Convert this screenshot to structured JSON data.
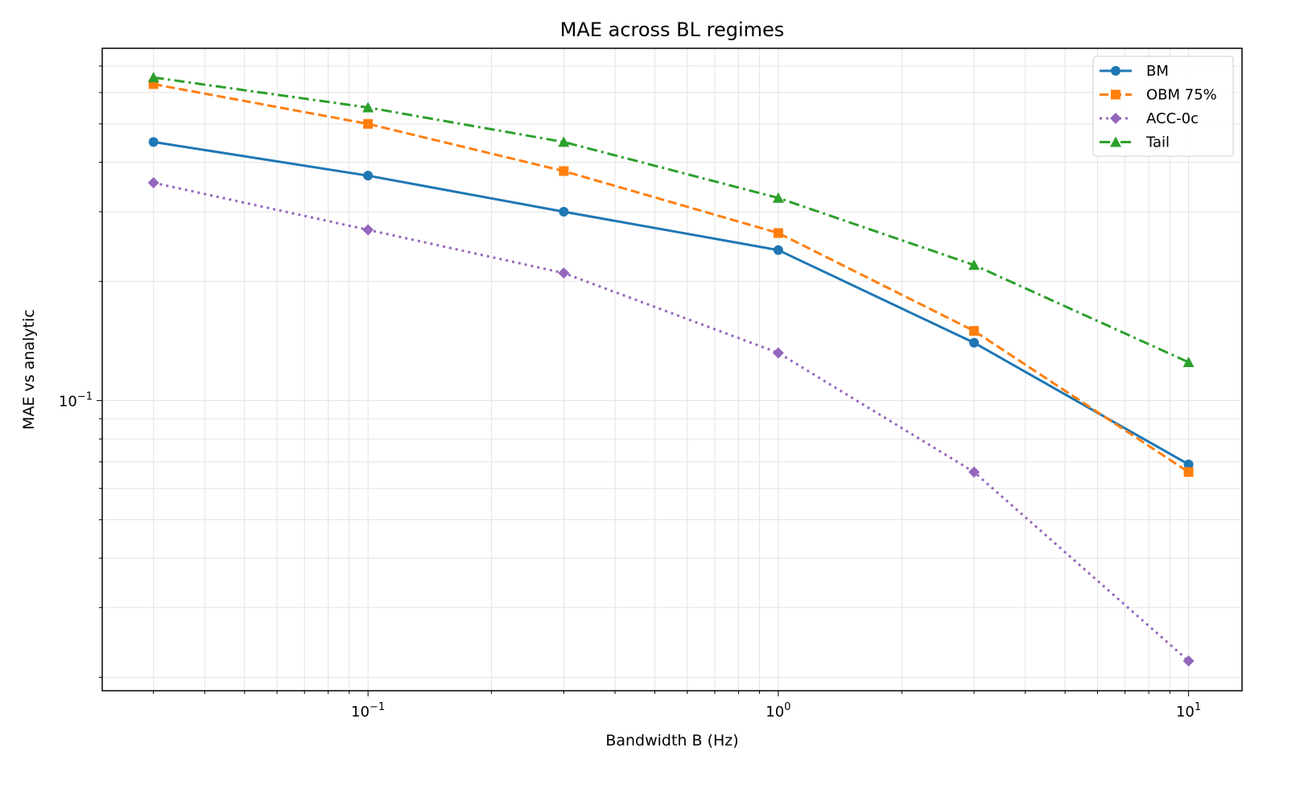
{
  "chart_data": {
    "type": "line",
    "title": "MAE across BL regimes",
    "xlabel": "Bandwidth B (Hz)",
    "ylabel": "MAE vs analytic",
    "xscale": "log",
    "yscale": "log",
    "xlim": [
      0.0225,
      13.5
    ],
    "ylim": [
      0.0185,
      0.776
    ],
    "x_ticks": [
      {
        "value": 0.1,
        "base": "10",
        "exp": "−1"
      },
      {
        "value": 1,
        "base": "10",
        "exp": "0"
      },
      {
        "value": 10,
        "base": "10",
        "exp": "1"
      }
    ],
    "y_ticks": [
      {
        "value": 0.1,
        "base": "10",
        "exp": "−1"
      }
    ],
    "grid": true,
    "legend_position": "top-right",
    "x": [
      0.03,
      0.1,
      0.3,
      1,
      3,
      10
    ],
    "series": [
      {
        "name": "BM",
        "color": "#1f77b4",
        "linestyle": "solid",
        "marker": "circle",
        "values": [
          0.45,
          0.37,
          0.3,
          0.24,
          0.14,
          0.069
        ]
      },
      {
        "name": "OBM 75%",
        "color": "#ff7f0e",
        "linestyle": "dashed",
        "marker": "square",
        "values": [
          0.63,
          0.5,
          0.38,
          0.265,
          0.15,
          0.066
        ]
      },
      {
        "name": "ACC-0c",
        "color": "#9467bd",
        "linestyle": "dotted",
        "marker": "diamond",
        "values": [
          0.355,
          0.27,
          0.21,
          0.132,
          0.066,
          0.022
        ]
      },
      {
        "name": "Tail",
        "color": "#2ca02c",
        "linestyle": "dashdot",
        "marker": "triangle",
        "values": [
          0.655,
          0.55,
          0.45,
          0.325,
          0.22,
          0.125
        ]
      }
    ]
  }
}
